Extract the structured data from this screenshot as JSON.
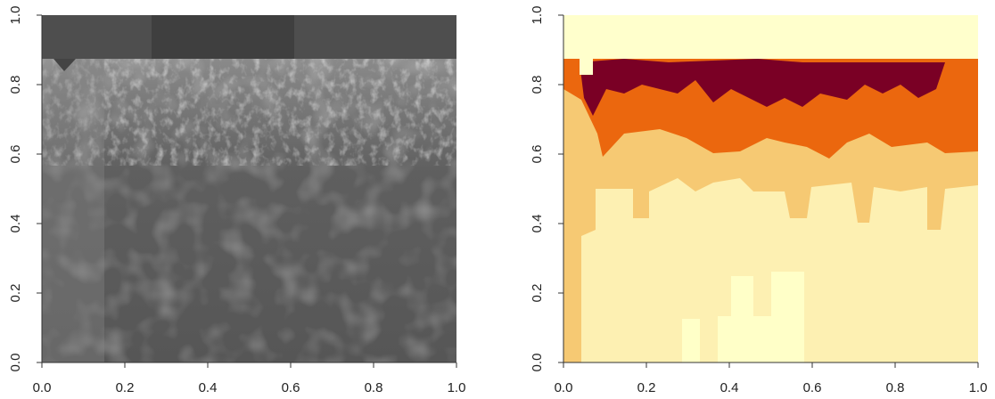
{
  "chart_data": [
    {
      "type": "image",
      "xlim": [
        0,
        1
      ],
      "ylim": [
        0,
        1
      ],
      "xticks": [
        {
          "value": 0,
          "label": "0.0"
        },
        {
          "value": 0.2,
          "label": "0.2"
        },
        {
          "value": 0.4,
          "label": "0.4"
        },
        {
          "value": 0.6,
          "label": "0.6"
        },
        {
          "value": 0.8,
          "label": "0.8"
        },
        {
          "value": 1,
          "label": "1.0"
        }
      ],
      "yticks": [
        {
          "value": 0,
          "label": "0.0"
        },
        {
          "value": 0.2,
          "label": "0.2"
        },
        {
          "value": 0.4,
          "label": "0.4"
        },
        {
          "value": 0.6,
          "label": "0.6"
        },
        {
          "value": 0.8,
          "label": "0.8"
        },
        {
          "value": 1,
          "label": "1.0"
        }
      ]
    },
    {
      "type": "image",
      "xlim": [
        0,
        1
      ],
      "ylim": [
        0,
        1
      ],
      "xticks": [
        {
          "value": 0,
          "label": "0.0"
        },
        {
          "value": 0.2,
          "label": "0.2"
        },
        {
          "value": 0.4,
          "label": "0.4"
        },
        {
          "value": 0.6,
          "label": "0.6"
        },
        {
          "value": 0.8,
          "label": "0.8"
        },
        {
          "value": 1,
          "label": "1.0"
        }
      ],
      "yticks": [
        {
          "value": 0,
          "label": "0.0"
        },
        {
          "value": 0.2,
          "label": "0.2"
        },
        {
          "value": 0.4,
          "label": "0.4"
        },
        {
          "value": 0.6,
          "label": "0.6"
        },
        {
          "value": 0.8,
          "label": "0.8"
        },
        {
          "value": 1,
          "label": "1.0"
        }
      ]
    }
  ]
}
